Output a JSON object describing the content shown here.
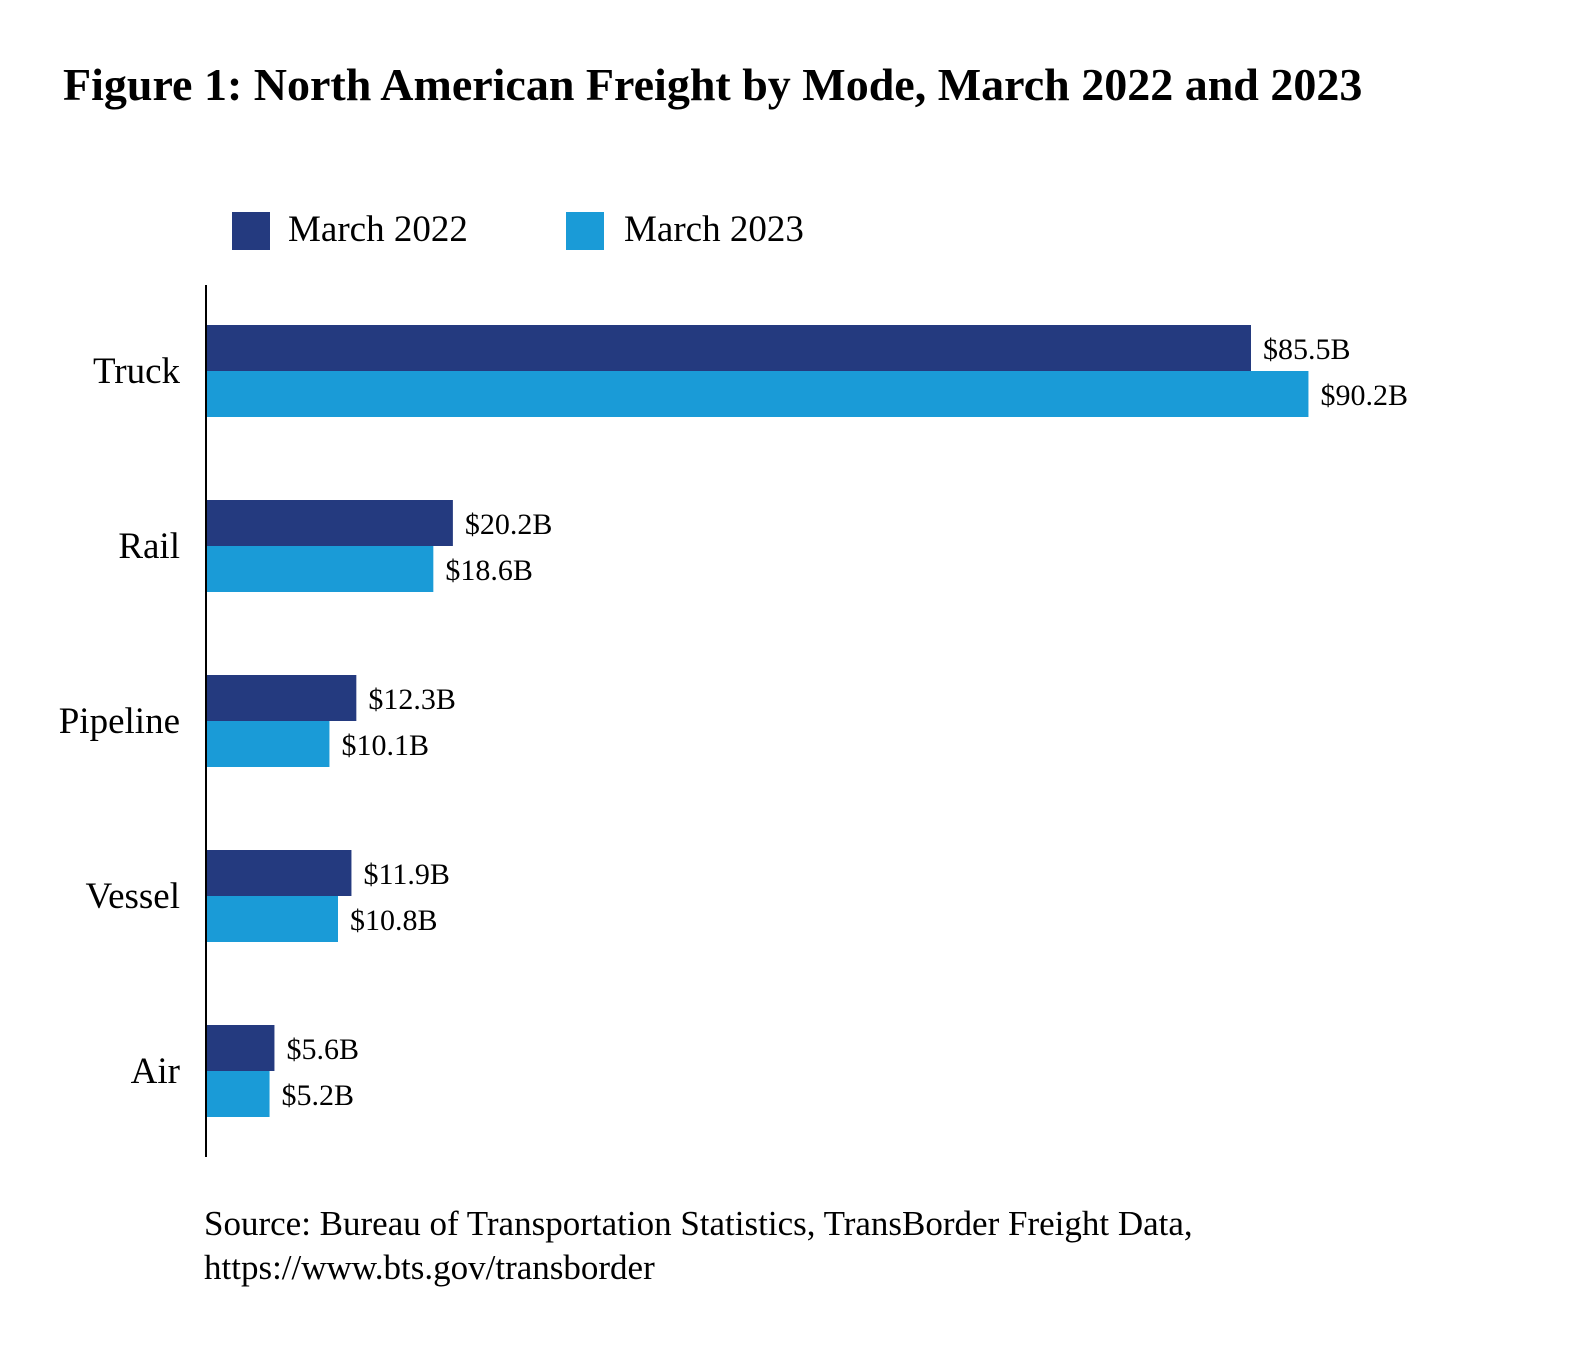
{
  "chart_data": {
    "type": "bar",
    "orientation": "horizontal",
    "title": "Figure 1: North American Freight by Mode, March 2022 and 2023",
    "categories": [
      "Truck",
      "Rail",
      "Pipeline",
      "Vessel",
      "Air"
    ],
    "series": [
      {
        "name": "March 2022",
        "color": "#243a7f",
        "values": [
          85.5,
          20.2,
          12.3,
          11.9,
          5.6
        ],
        "labels": [
          "$85.5B",
          "$20.2B",
          "$12.3B",
          "$11.9B",
          "$5.6B"
        ]
      },
      {
        "name": "March 2023",
        "color": "#1a9bd7",
        "values": [
          90.2,
          18.6,
          10.1,
          10.8,
          5.2
        ],
        "labels": [
          "$90.2B",
          "$18.6B",
          "$10.1B",
          "$10.8B",
          "$5.2B"
        ]
      }
    ],
    "xlabel": "",
    "ylabel": "",
    "xlim": [
      0,
      100
    ],
    "grid": false,
    "legend_position": "top",
    "source": [
      "Source: Bureau of Transportation Statistics, TransBorder Freight Data,",
      "https://www.bts.gov/transborder"
    ]
  }
}
